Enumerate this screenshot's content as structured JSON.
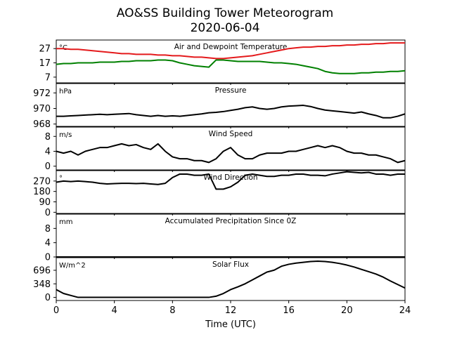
{
  "chart_data": {
    "type": "line",
    "title": "AO&SS Building Tower Meteorogram",
    "subtitle": "2020-06-04",
    "xlabel": "Time (UTC)",
    "xlim": [
      0,
      24
    ],
    "xticks": [
      "0",
      "4",
      "8",
      "12",
      "16",
      "20",
      "24"
    ],
    "x": [
      0,
      0.5,
      1,
      1.5,
      2,
      2.5,
      3,
      3.5,
      4,
      4.5,
      5,
      5.5,
      6,
      6.5,
      7,
      7.5,
      8,
      8.5,
      9,
      9.5,
      10,
      10.5,
      11,
      11.5,
      12,
      12.5,
      13,
      13.5,
      14,
      14.5,
      15,
      15.5,
      16,
      16.5,
      17,
      17.5,
      18,
      18.5,
      19,
      19.5,
      20,
      20.5,
      21,
      21.5,
      22,
      22.5,
      23,
      23.5,
      24
    ],
    "panels": [
      {
        "title": "Air and Dewpoint Temperature",
        "unit": "°C",
        "ylim": [
          3,
          33
        ],
        "yticks": [
          7,
          17,
          27
        ],
        "ytick_labels": [
          "7",
          "17",
          "27"
        ],
        "series": [
          {
            "color": "#e41a1c",
            "values": [
              27,
              27,
              26.5,
              26.5,
              26,
              25.5,
              25,
              24.5,
              24,
              23.5,
              23.5,
              23,
              23,
              23,
              22.5,
              22.5,
              22,
              22,
              21.5,
              21,
              21,
              20.5,
              20,
              20,
              20.5,
              21,
              21.5,
              22,
              23,
              24,
              25,
              26,
              27,
              27.5,
              28,
              28,
              28.5,
              28.5,
              29,
              29,
              29.5,
              29.5,
              30,
              30,
              30.5,
              30.5,
              31,
              31,
              31
            ]
          },
          {
            "color": "#008000",
            "values": [
              16,
              16.5,
              16.5,
              17,
              17,
              17,
              17.5,
              17.5,
              17.5,
              18,
              18,
              18.5,
              18.5,
              18.5,
              19,
              19,
              18.5,
              17,
              16,
              15,
              14.5,
              14,
              19,
              19,
              18.5,
              18,
              18,
              18,
              18,
              17.5,
              17,
              17,
              16.5,
              16,
              15,
              14,
              13,
              11,
              10,
              9.5,
              9.5,
              9.5,
              10,
              10,
              10.5,
              10.5,
              11,
              11,
              11.5
            ]
          }
        ]
      },
      {
        "title": "Pressure",
        "unit": "hPa",
        "ylim": [
          967.7,
          973.2
        ],
        "yticks": [
          968,
          970,
          972
        ],
        "ytick_labels": [
          "968",
          "970",
          "972"
        ],
        "series": [
          {
            "color": "#000000",
            "values": [
              969,
              969,
              969.05,
              969.1,
              969.15,
              969.2,
              969.25,
              969.2,
              969.25,
              969.3,
              969.35,
              969.2,
              969.1,
              969.0,
              969.1,
              969.0,
              969.05,
              969.0,
              969.1,
              969.2,
              969.3,
              969.45,
              969.5,
              969.6,
              969.75,
              969.9,
              970.1,
              970.2,
              970.0,
              969.9,
              970.0,
              970.2,
              970.3,
              970.35,
              970.4,
              970.25,
              970.0,
              969.8,
              969.7,
              969.6,
              969.5,
              969.4,
              969.55,
              969.3,
              969.1,
              968.8,
              968.8,
              969.0,
              969.3
            ]
          }
        ]
      },
      {
        "title": "Wind Speed",
        "unit": "m/s",
        "ylim": [
          -1,
          10.5
        ],
        "yticks": [
          0,
          4,
          8
        ],
        "ytick_labels": [
          "0",
          "4",
          "8"
        ],
        "series": [
          {
            "color": "#000000",
            "values": [
              4,
              3.5,
              4,
              3,
              4,
              4.5,
              5,
              5,
              5.5,
              6,
              5.5,
              5.8,
              5,
              4.5,
              6,
              4,
              2.5,
              2,
              2,
              1.5,
              1.5,
              1,
              2,
              4,
              5,
              3,
              2,
              2,
              3,
              3.5,
              3.5,
              3.5,
              4,
              4,
              4.5,
              5,
              5.5,
              5,
              5.5,
              5,
              4,
              3.5,
              3.5,
              3,
              3,
              2.5,
              2,
              1,
              1.5
            ]
          }
        ]
      },
      {
        "title": "Wind Direction",
        "unit": "°",
        "ylim": [
          -10,
          360
        ],
        "yticks": [
          0,
          90,
          180,
          270
        ],
        "ytick_labels": [
          "0",
          "90",
          "180",
          "270"
        ],
        "series": [
          {
            "color": "#000000",
            "values": [
              260,
              270,
              265,
              270,
              265,
              260,
              250,
              245,
              248,
              250,
              250,
              248,
              250,
              245,
              240,
              250,
              300,
              330,
              330,
              320,
              320,
              330,
              200,
              200,
              220,
              260,
              320,
              330,
              320,
              310,
              310,
              320,
              320,
              330,
              330,
              320,
              320,
              315,
              330,
              340,
              350,
              345,
              340,
              345,
              330,
              330,
              320,
              330,
              330
            ]
          }
        ]
      },
      {
        "title": "Accumulated Precipitation Since 0Z",
        "unit": "mm",
        "ylim": [
          0,
          12
        ],
        "yticks": [
          0,
          4,
          8
        ],
        "ytick_labels": [
          "0",
          "4",
          "8"
        ],
        "series": [
          {
            "color": "#000000",
            "values": [
              0,
              0,
              0,
              0,
              0,
              0,
              0,
              0,
              0,
              0,
              0,
              0,
              0,
              0,
              0,
              0,
              0,
              0,
              0,
              0,
              0,
              0,
              0,
              0,
              0,
              0,
              0,
              0,
              0,
              0,
              0,
              0,
              0,
              0,
              0,
              0,
              0,
              0,
              0,
              0,
              0,
              0,
              0,
              0,
              0,
              0,
              0,
              0,
              0
            ]
          }
        ]
      },
      {
        "title": "Solar Flux",
        "unit": "W/m^2",
        "ylim": [
          -80,
          1020
        ],
        "yticks": [
          0,
          348,
          696
        ],
        "ytick_labels": [
          "0",
          "348",
          "696"
        ],
        "series": [
          {
            "color": "#000000",
            "values": [
              200,
              100,
              50,
              0,
              0,
              0,
              0,
              0,
              0,
              0,
              0,
              0,
              0,
              0,
              0,
              0,
              0,
              0,
              0,
              0,
              0,
              0,
              30,
              100,
              200,
              270,
              350,
              450,
              550,
              650,
              700,
              800,
              850,
              880,
              900,
              920,
              930,
              920,
              900,
              870,
              830,
              780,
              720,
              660,
              600,
              520,
              420,
              330,
              240
            ]
          }
        ]
      }
    ]
  }
}
